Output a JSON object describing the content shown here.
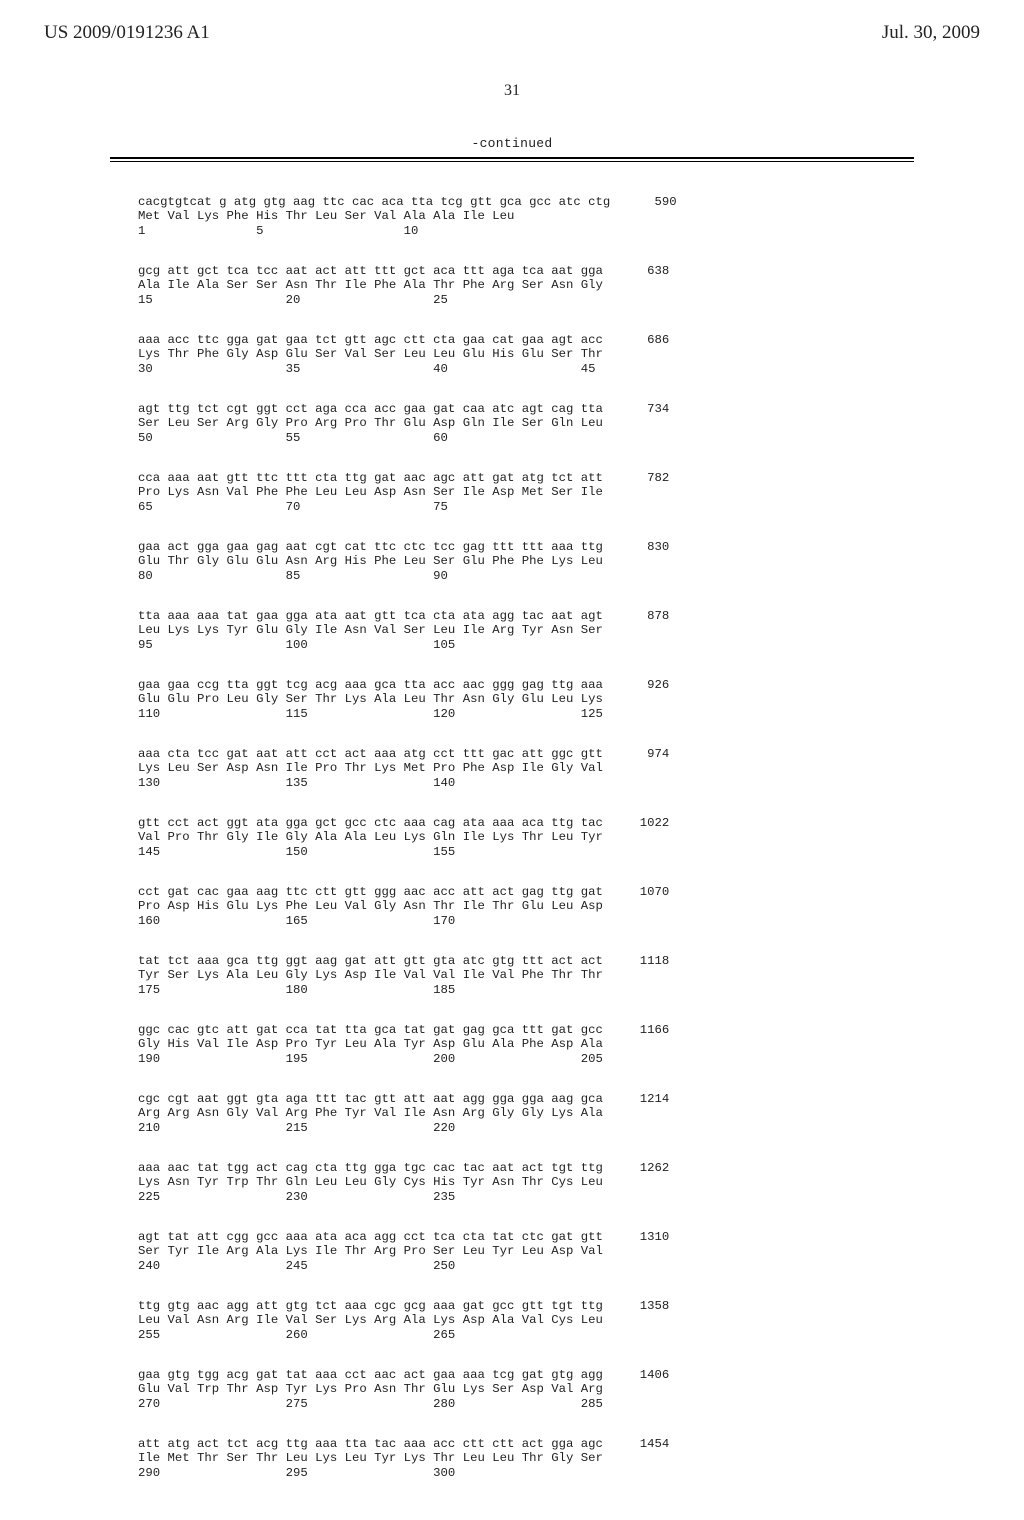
{
  "header": {
    "pubnum": "US 2009/0191236 A1",
    "pubdate": "Jul. 30, 2009"
  },
  "pagenum": "31",
  "continued": "-continued",
  "blocks": [
    {
      "l1": "cacgtgtcat g atg gtg aag ttc cac aca tta tcg gtt gca gcc atc ctg      590",
      "l2": "Met Val Lys Phe His Thr Leu Ser Val Ala Ala Ile Leu",
      "l3": "1               5                   10"
    },
    {
      "l1": "gcg att gct tca tcc aat act att ttt gct aca ttt aga tca aat gga      638",
      "l2": "Ala Ile Ala Ser Ser Asn Thr Ile Phe Ala Thr Phe Arg Ser Asn Gly",
      "l3": "15                  20                  25"
    },
    {
      "l1": "aaa acc ttc gga gat gaa tct gtt agc ctt cta gaa cat gaa agt acc      686",
      "l2": "Lys Thr Phe Gly Asp Glu Ser Val Ser Leu Leu Glu His Glu Ser Thr",
      "l3": "30                  35                  40                  45"
    },
    {
      "l1": "agt ttg tct cgt ggt cct aga cca acc gaa gat caa atc agt cag tta      734",
      "l2": "Ser Leu Ser Arg Gly Pro Arg Pro Thr Glu Asp Gln Ile Ser Gln Leu",
      "l3": "50                  55                  60"
    },
    {
      "l1": "cca aaa aat gtt ttc ttt cta ttg gat aac agc att gat atg tct att      782",
      "l2": "Pro Lys Asn Val Phe Phe Leu Leu Asp Asn Ser Ile Asp Met Ser Ile",
      "l3": "65                  70                  75"
    },
    {
      "l1": "gaa act gga gaa gag aat cgt cat ttc ctc tcc gag ttt ttt aaa ttg      830",
      "l2": "Glu Thr Gly Glu Glu Asn Arg His Phe Leu Ser Glu Phe Phe Lys Leu",
      "l3": "80                  85                  90"
    },
    {
      "l1": "tta aaa aaa tat gaa gga ata aat gtt tca cta ata agg tac aat agt      878",
      "l2": "Leu Lys Lys Tyr Glu Gly Ile Asn Val Ser Leu Ile Arg Tyr Asn Ser",
      "l3": "95                  100                 105"
    },
    {
      "l1": "gaa gaa ccg tta ggt tcg acg aaa gca tta acc aac ggg gag ttg aaa      926",
      "l2": "Glu Glu Pro Leu Gly Ser Thr Lys Ala Leu Thr Asn Gly Glu Leu Lys",
      "l3": "110                 115                 120                 125"
    },
    {
      "l1": "aaa cta tcc gat aat att cct act aaa atg cct ttt gac att ggc gtt      974",
      "l2": "Lys Leu Ser Asp Asn Ile Pro Thr Lys Met Pro Phe Asp Ile Gly Val",
      "l3": "130                 135                 140"
    },
    {
      "l1": "gtt cct act ggt ata gga gct gcc ctc aaa cag ata aaa aca ttg tac     1022",
      "l2": "Val Pro Thr Gly Ile Gly Ala Ala Leu Lys Gln Ile Lys Thr Leu Tyr",
      "l3": "145                 150                 155"
    },
    {
      "l1": "cct gat cac gaa aag ttc ctt gtt ggg aac acc att act gag ttg gat     1070",
      "l2": "Pro Asp His Glu Lys Phe Leu Val Gly Asn Thr Ile Thr Glu Leu Asp",
      "l3": "160                 165                 170"
    },
    {
      "l1": "tat tct aaa gca ttg ggt aag gat att gtt gta atc gtg ttt act act     1118",
      "l2": "Tyr Ser Lys Ala Leu Gly Lys Asp Ile Val Val Ile Val Phe Thr Thr",
      "l3": "175                 180                 185"
    },
    {
      "l1": "ggc cac gtc att gat cca tat tta gca tat gat gag gca ttt gat gcc     1166",
      "l2": "Gly His Val Ile Asp Pro Tyr Leu Ala Tyr Asp Glu Ala Phe Asp Ala",
      "l3": "190                 195                 200                 205"
    },
    {
      "l1": "cgc cgt aat ggt gta aga ttt tac gtt att aat agg gga gga aag gca     1214",
      "l2": "Arg Arg Asn Gly Val Arg Phe Tyr Val Ile Asn Arg Gly Gly Lys Ala",
      "l3": "210                 215                 220"
    },
    {
      "l1": "aaa aac tat tgg act cag cta ttg gga tgc cac tac aat act tgt ttg     1262",
      "l2": "Lys Asn Tyr Trp Thr Gln Leu Leu Gly Cys His Tyr Asn Thr Cys Leu",
      "l3": "225                 230                 235"
    },
    {
      "l1": "agt tat att cgg gcc aaa ata aca agg cct tca cta tat ctc gat gtt     1310",
      "l2": "Ser Tyr Ile Arg Ala Lys Ile Thr Arg Pro Ser Leu Tyr Leu Asp Val",
      "l3": "240                 245                 250"
    },
    {
      "l1": "ttg gtg aac agg att gtg tct aaa cgc gcg aaa gat gcc gtt tgt ttg     1358",
      "l2": "Leu Val Asn Arg Ile Val Ser Lys Arg Ala Lys Asp Ala Val Cys Leu",
      "l3": "255                 260                 265"
    },
    {
      "l1": "gaa gtg tgg acg gat tat aaa cct aac act gaa aaa tcg gat gtg agg     1406",
      "l2": "Glu Val Trp Thr Asp Tyr Lys Pro Asn Thr Glu Lys Ser Asp Val Arg",
      "l3": "270                 275                 280                 285"
    },
    {
      "l1": "att atg act tct acg ttg aaa tta tac aaa acc ctt ctt act gga agc     1454",
      "l2": "Ile Met Thr Ser Thr Leu Lys Leu Tyr Lys Thr Leu Leu Thr Gly Ser",
      "l3": "290                 295                 300"
    }
  ]
}
